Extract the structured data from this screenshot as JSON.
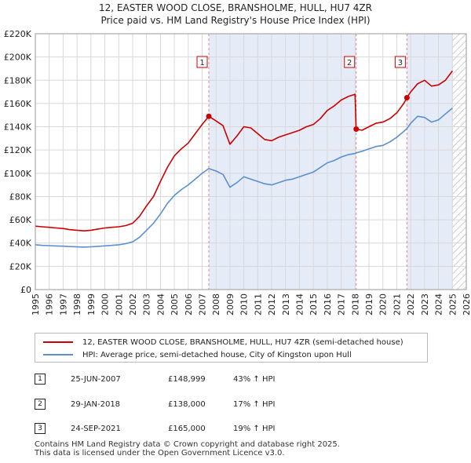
{
  "chart_data": {
    "type": "line",
    "title": "12, EASTER WOOD CLOSE, BRANSHOLME, HULL, HU7 4ZR",
    "subtitle": "Price paid vs. HM Land Registry's House Price Index (HPI)",
    "xlim": [
      1995,
      2026
    ],
    "ylim": [
      0,
      220000
    ],
    "x_ticks": [
      "1995",
      "1996",
      "1997",
      "1998",
      "1999",
      "2000",
      "2001",
      "2002",
      "2003",
      "2004",
      "2005",
      "2006",
      "2007",
      "2008",
      "2009",
      "2010",
      "2011",
      "2012",
      "2013",
      "2014",
      "2015",
      "2016",
      "2017",
      "2018",
      "2019",
      "2020",
      "2021",
      "2022",
      "2023",
      "2024",
      "2025",
      "2026"
    ],
    "y_ticks": [
      "£0",
      "£20K",
      "£40K",
      "£60K",
      "£80K",
      "£100K",
      "£120K",
      "£140K",
      "£160K",
      "£180K",
      "£200K",
      "£220K"
    ],
    "y_tick_values": [
      0,
      20000,
      40000,
      60000,
      80000,
      100000,
      120000,
      140000,
      160000,
      180000,
      200000,
      220000
    ],
    "shaded_ranges": [
      [
        2007.48,
        2018.08
      ],
      [
        2021.73,
        2025.0
      ]
    ],
    "future_hatch_start": 2025.0,
    "series": [
      {
        "name": "12, EASTER WOOD CLOSE, BRANSHOLME, HULL, HU7 4ZR (semi-detached house)",
        "color": "#cc0000",
        "points": [
          [
            1995.0,
            54500
          ],
          [
            1995.5,
            54000
          ],
          [
            1996.0,
            53500
          ],
          [
            1996.5,
            53000
          ],
          [
            1997.0,
            52500
          ],
          [
            1997.5,
            51500
          ],
          [
            1998.0,
            51000
          ],
          [
            1998.5,
            50500
          ],
          [
            1999.0,
            51000
          ],
          [
            1999.5,
            52000
          ],
          [
            2000.0,
            53000
          ],
          [
            2000.5,
            53500
          ],
          [
            2001.0,
            54000
          ],
          [
            2001.5,
            55000
          ],
          [
            2002.0,
            57000
          ],
          [
            2002.5,
            63000
          ],
          [
            2003.0,
            72000
          ],
          [
            2003.5,
            80000
          ],
          [
            2004.0,
            93000
          ],
          [
            2004.5,
            105000
          ],
          [
            2005.0,
            115000
          ],
          [
            2005.5,
            121000
          ],
          [
            2006.0,
            126000
          ],
          [
            2006.5,
            134000
          ],
          [
            2007.0,
            142000
          ],
          [
            2007.48,
            148999
          ],
          [
            2008.0,
            145000
          ],
          [
            2008.5,
            141000
          ],
          [
            2009.0,
            125000
          ],
          [
            2009.5,
            132000
          ],
          [
            2010.0,
            140000
          ],
          [
            2010.5,
            139000
          ],
          [
            2011.0,
            134000
          ],
          [
            2011.5,
            129000
          ],
          [
            2012.0,
            128000
          ],
          [
            2012.5,
            131000
          ],
          [
            2013.0,
            133000
          ],
          [
            2013.5,
            135000
          ],
          [
            2014.0,
            137000
          ],
          [
            2014.5,
            140000
          ],
          [
            2015.0,
            142000
          ],
          [
            2015.5,
            147000
          ],
          [
            2016.0,
            154000
          ],
          [
            2016.5,
            158000
          ],
          [
            2017.0,
            163000
          ],
          [
            2017.5,
            166000
          ],
          [
            2018.0,
            168000
          ],
          [
            2018.08,
            138000
          ],
          [
            2018.5,
            137000
          ],
          [
            2019.0,
            140000
          ],
          [
            2019.5,
            143000
          ],
          [
            2020.0,
            144000
          ],
          [
            2020.5,
            147000
          ],
          [
            2021.0,
            152000
          ],
          [
            2021.5,
            160000
          ],
          [
            2021.73,
            165000
          ],
          [
            2022.0,
            170000
          ],
          [
            2022.5,
            177000
          ],
          [
            2023.0,
            180000
          ],
          [
            2023.5,
            175000
          ],
          [
            2024.0,
            176000
          ],
          [
            2024.5,
            180000
          ],
          [
            2025.0,
            188000
          ]
        ]
      },
      {
        "name": "HPI: Average price, semi-detached house, City of Kingston upon Hull",
        "color": "#5b8fd0",
        "points": [
          [
            1995.0,
            38500
          ],
          [
            1995.5,
            38000
          ],
          [
            1996.0,
            37800
          ],
          [
            1996.5,
            37500
          ],
          [
            1997.0,
            37300
          ],
          [
            1997.5,
            37000
          ],
          [
            1998.0,
            36700
          ],
          [
            1998.5,
            36500
          ],
          [
            1999.0,
            36800
          ],
          [
            1999.5,
            37200
          ],
          [
            2000.0,
            37600
          ],
          [
            2000.5,
            38000
          ],
          [
            2001.0,
            38500
          ],
          [
            2001.5,
            39500
          ],
          [
            2002.0,
            41000
          ],
          [
            2002.5,
            45000
          ],
          [
            2003.0,
            51000
          ],
          [
            2003.5,
            57000
          ],
          [
            2004.0,
            65000
          ],
          [
            2004.5,
            74000
          ],
          [
            2005.0,
            81000
          ],
          [
            2005.5,
            86000
          ],
          [
            2006.0,
            90000
          ],
          [
            2006.5,
            95000
          ],
          [
            2007.0,
            100000
          ],
          [
            2007.48,
            104000
          ],
          [
            2008.0,
            102000
          ],
          [
            2008.5,
            99000
          ],
          [
            2009.0,
            88000
          ],
          [
            2009.5,
            92000
          ],
          [
            2010.0,
            97000
          ],
          [
            2010.5,
            95000
          ],
          [
            2011.0,
            93000
          ],
          [
            2011.5,
            91000
          ],
          [
            2012.0,
            90000
          ],
          [
            2012.5,
            92000
          ],
          [
            2013.0,
            94000
          ],
          [
            2013.5,
            95000
          ],
          [
            2014.0,
            97000
          ],
          [
            2014.5,
            99000
          ],
          [
            2015.0,
            101000
          ],
          [
            2015.5,
            105000
          ],
          [
            2016.0,
            109000
          ],
          [
            2016.5,
            111000
          ],
          [
            2017.0,
            114000
          ],
          [
            2017.5,
            116000
          ],
          [
            2018.0,
            117000
          ],
          [
            2018.08,
            117500
          ],
          [
            2018.5,
            119000
          ],
          [
            2019.0,
            121000
          ],
          [
            2019.5,
            123000
          ],
          [
            2020.0,
            124000
          ],
          [
            2020.5,
            127000
          ],
          [
            2021.0,
            131000
          ],
          [
            2021.5,
            136000
          ],
          [
            2021.73,
            138500
          ],
          [
            2022.0,
            143000
          ],
          [
            2022.5,
            149000
          ],
          [
            2023.0,
            148000
          ],
          [
            2023.5,
            144000
          ],
          [
            2024.0,
            146000
          ],
          [
            2024.5,
            151000
          ],
          [
            2025.0,
            156000
          ]
        ]
      }
    ],
    "markers": [
      {
        "label": "1",
        "x": 2007.48,
        "y": 148999
      },
      {
        "label": "2",
        "x": 2018.08,
        "y": 138000
      },
      {
        "label": "3",
        "x": 2021.73,
        "y": 165000
      }
    ]
  },
  "legend": {
    "red_label": "12, EASTER WOOD CLOSE, BRANSHOLME, HULL, HU7 4ZR (semi-detached house)",
    "blue_label": "HPI: Average price, semi-detached house, City of Kingston upon Hull",
    "red_color": "#cc0000",
    "blue_color": "#5b8fd0"
  },
  "sales": [
    {
      "num": "1",
      "date": "25-JUN-2007",
      "price": "£148,999",
      "change": "43% ↑ HPI"
    },
    {
      "num": "2",
      "date": "29-JAN-2018",
      "price": "£138,000",
      "change": "17% ↑ HPI"
    },
    {
      "num": "3",
      "date": "24-SEP-2021",
      "price": "£165,000",
      "change": "19% ↑ HPI"
    }
  ],
  "footer": {
    "line1": "Contains HM Land Registry data © Crown copyright and database right 2025.",
    "line2": "This data is licensed under the Open Government Licence v3.0."
  }
}
